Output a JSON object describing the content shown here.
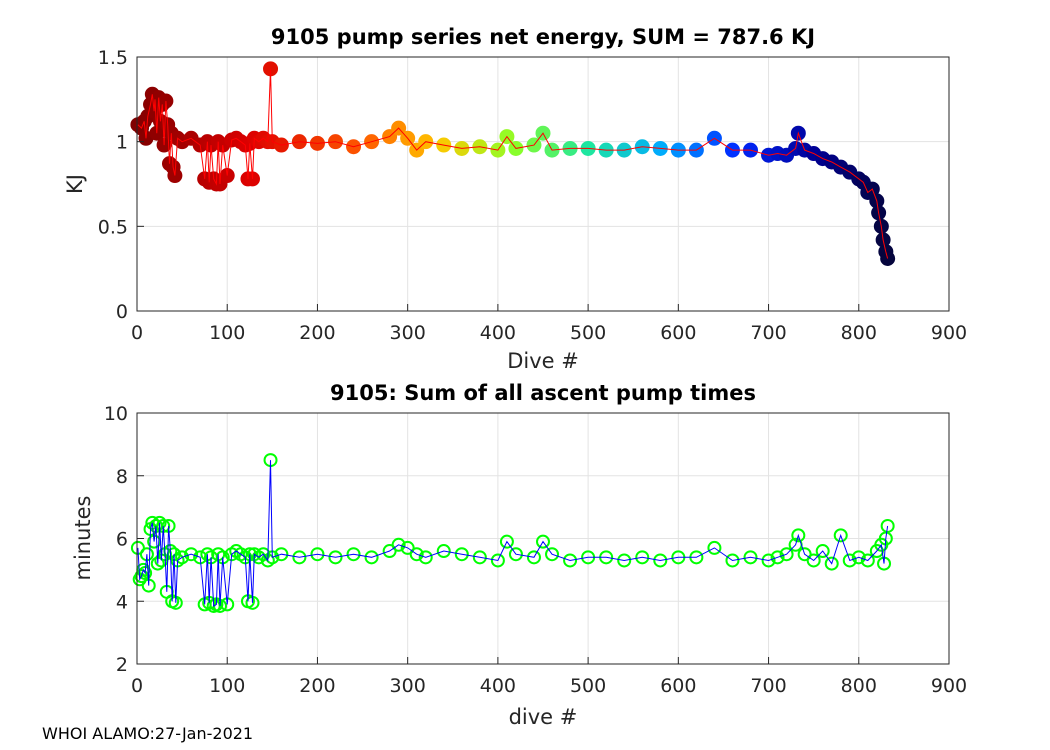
{
  "footer": "WHOI ALAMO:27-Jan-2021",
  "chart_data": [
    {
      "type": "scatter",
      "title": "9105 pump series net energy, SUM = 787.6 KJ",
      "xlabel": "Dive #",
      "ylabel": "KJ",
      "xlim": [
        0,
        900
      ],
      "ylim": [
        0,
        1.5
      ],
      "xticks": [
        "0",
        "100",
        "200",
        "300",
        "400",
        "500",
        "600",
        "700",
        "800",
        "900"
      ],
      "yticks": [
        "0",
        "0.5",
        "1",
        "1.5"
      ],
      "grid": true,
      "line_color": "#ff0000",
      "marker_colormap": "jet (dark red → red → orange → yellow → green → cyan → blue → dark navy) by dive number",
      "series": [
        {
          "name": "net energy",
          "x": [
            1,
            5,
            8,
            10,
            12,
            15,
            17,
            19,
            20,
            22,
            24,
            26,
            28,
            30,
            32,
            34,
            36,
            38,
            40,
            42,
            45,
            50,
            60,
            70,
            75,
            78,
            80,
            82,
            85,
            88,
            90,
            92,
            95,
            100,
            105,
            110,
            115,
            120,
            123,
            125,
            128,
            130,
            135,
            140,
            145,
            148,
            150,
            160,
            180,
            200,
            220,
            240,
            260,
            280,
            290,
            300,
            310,
            320,
            340,
            360,
            380,
            400,
            410,
            420,
            440,
            450,
            460,
            480,
            500,
            520,
            540,
            560,
            580,
            600,
            620,
            640,
            660,
            680,
            700,
            710,
            720,
            730,
            733,
            740,
            750,
            760,
            770,
            780,
            790,
            800,
            805,
            810,
            815,
            820,
            822,
            825,
            827,
            830,
            832
          ],
          "y": [
            1.1,
            1.08,
            1.12,
            1.02,
            1.15,
            1.22,
            1.28,
            1.18,
            1.25,
            1.05,
            1.26,
            1.12,
            1.22,
            0.98,
            1.24,
            1.1,
            0.87,
            1.05,
            0.85,
            0.8,
            1.02,
            1.0,
            1.02,
            0.98,
            0.78,
            1.0,
            0.76,
            0.98,
            0.78,
            0.75,
            1.0,
            0.75,
            0.98,
            0.8,
            1.01,
            1.02,
            1.0,
            0.98,
            0.78,
            0.99,
            0.78,
            1.02,
            1.0,
            1.02,
            1.0,
            1.43,
            1.0,
            0.98,
            1.0,
            0.99,
            1.0,
            0.97,
            1.0,
            1.03,
            1.08,
            1.02,
            0.95,
            1.0,
            0.98,
            0.96,
            0.97,
            0.95,
            1.03,
            0.96,
            0.98,
            1.05,
            0.95,
            0.96,
            0.96,
            0.95,
            0.95,
            0.97,
            0.96,
            0.95,
            0.95,
            1.02,
            0.95,
            0.95,
            0.92,
            0.93,
            0.92,
            0.96,
            1.05,
            0.95,
            0.93,
            0.9,
            0.88,
            0.85,
            0.82,
            0.78,
            0.76,
            0.7,
            0.72,
            0.65,
            0.58,
            0.5,
            0.42,
            0.35,
            0.31
          ]
        }
      ]
    },
    {
      "type": "scatter",
      "title": "9105: Sum of all ascent pump times",
      "xlabel": "dive #",
      "ylabel": "minutes",
      "xlim": [
        0,
        900
      ],
      "ylim": [
        2,
        10
      ],
      "xticks": [
        "0",
        "100",
        "200",
        "300",
        "400",
        "500",
        "600",
        "700",
        "800",
        "900"
      ],
      "yticks": [
        "2",
        "4",
        "6",
        "8",
        "10"
      ],
      "grid": true,
      "line_color": "#0000ff",
      "marker_color": "#00ff00",
      "series": [
        {
          "name": "ascent pump time",
          "x": [
            1,
            3,
            5,
            7,
            9,
            11,
            13,
            15,
            17,
            19,
            21,
            23,
            25,
            27,
            29,
            31,
            33,
            35,
            37,
            39,
            41,
            43,
            45,
            50,
            60,
            70,
            75,
            78,
            80,
            82,
            85,
            88,
            90,
            92,
            95,
            100,
            105,
            110,
            115,
            120,
            123,
            125,
            128,
            130,
            135,
            140,
            145,
            148,
            150,
            160,
            180,
            200,
            220,
            240,
            260,
            280,
            290,
            300,
            310,
            320,
            340,
            360,
            380,
            400,
            410,
            420,
            440,
            450,
            460,
            480,
            500,
            520,
            540,
            560,
            580,
            600,
            620,
            640,
            660,
            680,
            700,
            710,
            720,
            730,
            733,
            740,
            750,
            760,
            770,
            780,
            790,
            800,
            810,
            820,
            825,
            828,
            830,
            832
          ],
          "y": [
            5.7,
            4.7,
            4.8,
            5.0,
            4.9,
            5.5,
            4.5,
            6.3,
            6.5,
            5.9,
            6.4,
            5.2,
            6.5,
            5.3,
            6.4,
            5.5,
            4.3,
            6.4,
            5.6,
            4.0,
            5.5,
            3.95,
            5.3,
            5.4,
            5.5,
            5.4,
            3.9,
            5.5,
            3.95,
            5.4,
            3.85,
            3.9,
            5.5,
            3.85,
            5.4,
            3.9,
            5.5,
            5.6,
            5.5,
            5.4,
            4.0,
            5.5,
            3.95,
            5.5,
            5.4,
            5.5,
            5.3,
            8.5,
            5.4,
            5.5,
            5.4,
            5.5,
            5.4,
            5.5,
            5.4,
            5.6,
            5.8,
            5.7,
            5.5,
            5.4,
            5.6,
            5.5,
            5.4,
            5.3,
            5.9,
            5.5,
            5.4,
            5.9,
            5.5,
            5.3,
            5.4,
            5.4,
            5.3,
            5.4,
            5.3,
            5.4,
            5.4,
            5.7,
            5.3,
            5.4,
            5.3,
            5.4,
            5.5,
            5.8,
            6.1,
            5.5,
            5.3,
            5.6,
            5.2,
            6.1,
            5.3,
            5.4,
            5.3,
            5.6,
            5.8,
            5.2,
            6.0,
            6.4
          ]
        }
      ]
    }
  ]
}
